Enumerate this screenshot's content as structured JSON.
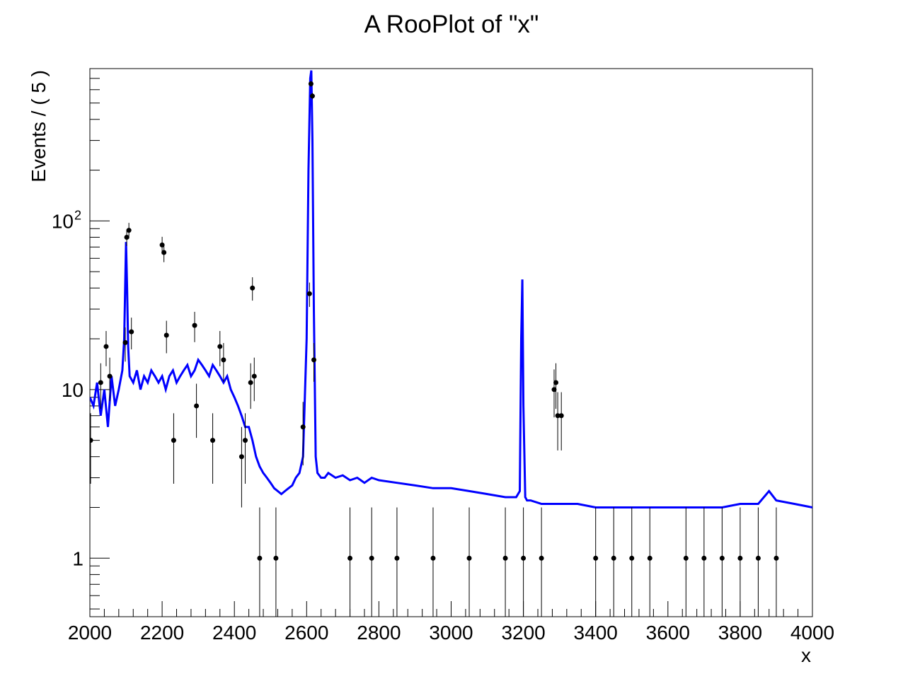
{
  "chart_data": {
    "type": "line",
    "title": "A RooPlot of \"x\"",
    "xlabel": "x",
    "ylabel": "Events / ( 5 )",
    "xlim": [
      2000,
      4000
    ],
    "ylim": [
      0.45,
      800
    ],
    "yscale": "log",
    "grid": false,
    "x_ticks": [
      "2000",
      "2200",
      "2400",
      "2600",
      "2800",
      "3000",
      "3200",
      "3400",
      "3600",
      "3800",
      "4000"
    ],
    "y_ticks": [
      {
        "value": 1,
        "label": "1",
        "sup": ""
      },
      {
        "value": 10,
        "label": "10",
        "sup": ""
      },
      {
        "value": 100,
        "label": "10",
        "sup": "2"
      }
    ],
    "series": [
      {
        "kind": "line",
        "color": "#0000ff",
        "x": [
          2000,
          2010,
          2020,
          2030,
          2040,
          2050,
          2060,
          2070,
          2080,
          2090,
          2095,
          2100,
          2103,
          2106,
          2110,
          2120,
          2130,
          2140,
          2150,
          2160,
          2170,
          2180,
          2190,
          2200,
          2210,
          2220,
          2230,
          2240,
          2250,
          2260,
          2270,
          2280,
          2290,
          2300,
          2310,
          2320,
          2330,
          2340,
          2350,
          2360,
          2370,
          2380,
          2390,
          2400,
          2410,
          2420,
          2430,
          2440,
          2450,
          2460,
          2470,
          2480,
          2490,
          2500,
          2510,
          2520,
          2530,
          2540,
          2550,
          2560,
          2570,
          2580,
          2590,
          2600,
          2605,
          2610,
          2613,
          2616,
          2620,
          2625,
          2630,
          2640,
          2650,
          2660,
          2680,
          2700,
          2720,
          2740,
          2760,
          2780,
          2800,
          2850,
          2900,
          2950,
          3000,
          3050,
          3100,
          3150,
          3180,
          3190,
          3194,
          3197,
          3200,
          3205,
          3210,
          3220,
          3250,
          3300,
          3350,
          3400,
          3450,
          3500,
          3550,
          3600,
          3650,
          3700,
          3750,
          3800,
          3850,
          3880,
          3900,
          3950,
          4000
        ],
        "y": [
          9,
          8,
          11,
          7,
          10,
          6,
          12,
          8,
          10,
          13,
          20,
          75,
          40,
          18,
          12,
          11,
          13,
          10,
          12,
          11,
          13,
          12,
          11,
          12,
          10,
          12,
          13,
          11,
          12,
          13,
          14,
          12,
          13,
          15,
          14,
          13,
          12,
          14,
          13,
          12,
          11,
          12,
          10,
          9,
          8,
          7,
          6,
          6,
          5,
          4,
          3.5,
          3.2,
          3,
          2.8,
          2.6,
          2.5,
          2.4,
          2.5,
          2.6,
          2.7,
          3,
          3.2,
          4,
          20,
          200,
          700,
          780,
          300,
          30,
          4,
          3.2,
          3,
          3,
          3.2,
          3,
          3.1,
          2.9,
          3,
          2.8,
          3,
          2.9,
          2.8,
          2.7,
          2.6,
          2.6,
          2.5,
          2.4,
          2.3,
          2.3,
          2.5,
          20,
          45,
          8,
          2.3,
          2.2,
          2.2,
          2.1,
          2.1,
          2.1,
          2.0,
          2.0,
          2.0,
          2.0,
          2.0,
          2.0,
          2.0,
          2.0,
          2.1,
          2.1,
          2.5,
          2.2,
          2.1,
          2.0
        ]
      },
      {
        "kind": "points",
        "color": "#000000",
        "x": [
          2002,
          2030,
          2045,
          2055,
          2098,
          2102,
          2108,
          2115,
          2200,
          2205,
          2212,
          2232,
          2290,
          2295,
          2340,
          2360,
          2370,
          2420,
          2430,
          2445,
          2450,
          2455,
          2470,
          2515,
          2590,
          2608,
          2612,
          2616,
          2620,
          3285,
          3290,
          3295,
          3305,
          2720,
          2780,
          2850,
          2950,
          3050,
          3150,
          3200,
          3250,
          3400,
          3450,
          3500,
          3550,
          3650,
          3700,
          3750,
          3800,
          3850,
          3900
        ],
        "y": [
          5,
          11,
          18,
          12,
          19,
          80,
          88,
          22,
          72,
          65,
          21,
          5,
          24,
          8,
          5,
          18,
          15,
          4,
          5,
          11,
          40,
          12,
          1,
          1,
          6,
          37,
          650,
          550,
          15,
          10,
          11,
          7,
          7,
          1,
          1,
          1,
          1,
          1,
          1,
          1,
          1,
          1,
          1,
          1,
          1,
          1,
          1,
          1,
          1,
          1,
          1
        ]
      }
    ]
  }
}
